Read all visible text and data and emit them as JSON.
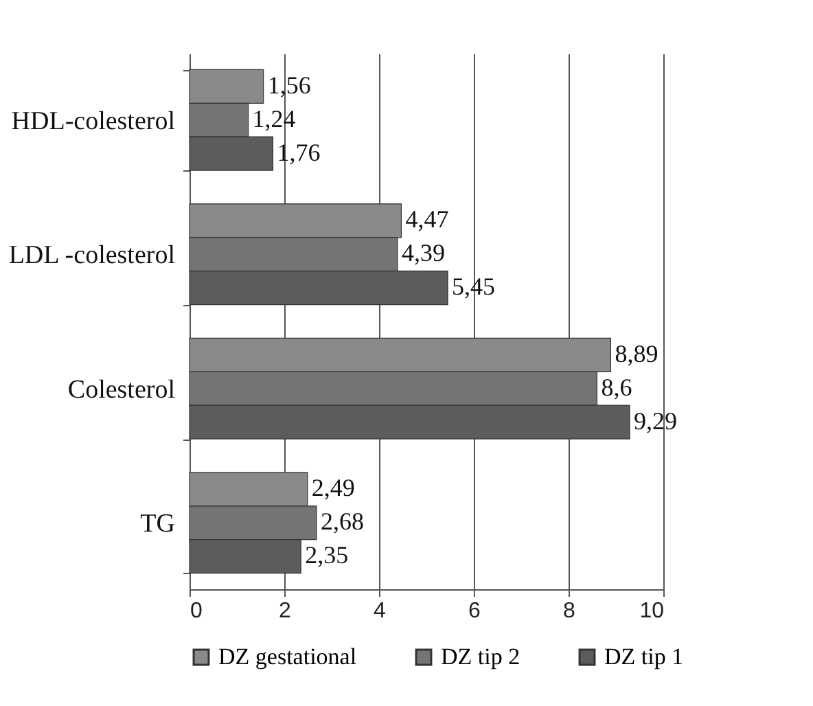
{
  "chart_data": {
    "type": "bar",
    "orientation": "horizontal",
    "categories": [
      "HDL-colesterol",
      "LDL -colesterol",
      "Colesterol",
      "TG"
    ],
    "series": [
      {
        "name": "DZ gestational",
        "color": "#8a8a8a",
        "values": [
          1.56,
          4.47,
          8.89,
          2.49
        ],
        "value_labels": [
          "1,56",
          "4,47",
          "8,89",
          "2,49"
        ]
      },
      {
        "name": "DZ tip 2",
        "color": "#747474",
        "values": [
          1.24,
          4.39,
          8.6,
          2.68
        ],
        "value_labels": [
          "1,24",
          "4,39",
          "8,6",
          "2,68"
        ]
      },
      {
        "name": "DZ tip 1",
        "color": "#5c5c5c",
        "values": [
          1.76,
          5.45,
          9.29,
          2.35
        ],
        "value_labels": [
          "1,76",
          "5,45",
          "9,29",
          "2,35"
        ]
      }
    ],
    "xlim": [
      0,
      10
    ],
    "xticks": [
      0,
      2,
      4,
      6,
      8,
      10
    ],
    "grid": "x",
    "legend": "bottom"
  }
}
